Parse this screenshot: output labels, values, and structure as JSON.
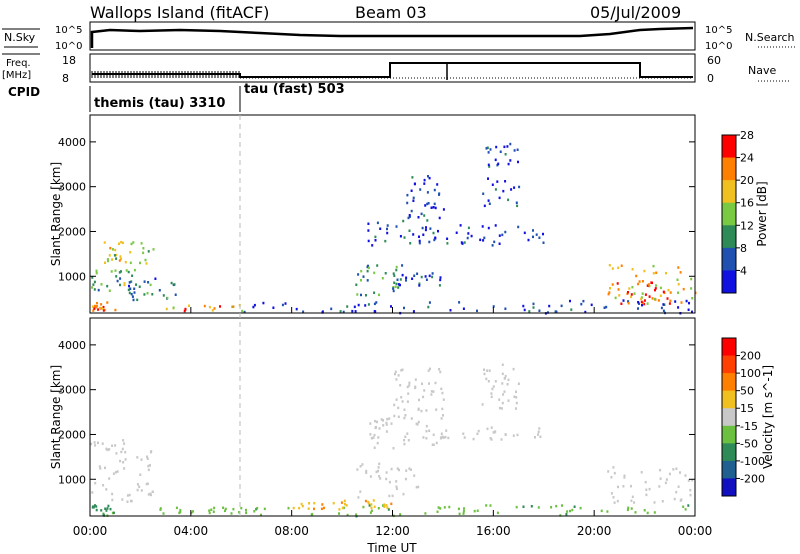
{
  "header": {
    "title": "Wallops Island (fitACF)",
    "beam": "Beam 03",
    "date": "05/Jul/2009"
  },
  "top_panels": {
    "nsky_label": "N.Sky",
    "nsky_ticks": [
      "10^5",
      "10^0"
    ],
    "nsearch_label": "N.Search",
    "nsearch_ticks": [
      "10^5",
      "10^0"
    ],
    "freq_label": "Freq.",
    "freq_unit": "[MHz]",
    "freq_ticks": [
      "18",
      "8"
    ],
    "nave_label": "Nave",
    "nave_ticks": [
      "60",
      "0"
    ],
    "cpid_label": "CPID",
    "cpid_segments": [
      {
        "label": "themis (tau) 3310",
        "start_hour": 0,
        "end_hour": 6
      },
      {
        "label": "tau (fast) 503",
        "start_hour": 6,
        "end_hour": 24
      }
    ]
  },
  "chart_data": [
    {
      "type": "heatmap",
      "name": "power-panel",
      "xlabel": "",
      "ylabel": "Slant Range [km]",
      "xlim": [
        0,
        24
      ],
      "ylim": [
        180,
        4600
      ],
      "yticks": [
        "1000",
        "2000",
        "3000",
        "4000"
      ],
      "xticks": [
        "00:00",
        "04:00",
        "08:00",
        "12:00",
        "16:00",
        "20:00",
        "00:00"
      ],
      "colorbar": {
        "label": "Power [dB]",
        "ticks": [
          "4",
          "8",
          "12",
          "16",
          "20",
          "24",
          "28"
        ],
        "colors": [
          "#1010e0",
          "#2050b0",
          "#2e8b57",
          "#7ac943",
          "#f0c020",
          "#ff8000",
          "#ff0000"
        ]
      },
      "regions": [
        {
          "t": [
            0.0,
            1.0
          ],
          "r": [
            250,
            450
          ],
          "level": 24
        },
        {
          "t": [
            0.0,
            1.8
          ],
          "r": [
            700,
            1200
          ],
          "level": 14
        },
        {
          "t": [
            0.5,
            2.5
          ],
          "r": [
            1300,
            1800
          ],
          "level": 18
        },
        {
          "t": [
            1.5,
            3.5
          ],
          "r": [
            500,
            1000
          ],
          "level": 10
        },
        {
          "t": [
            3.0,
            6.0
          ],
          "r": [
            250,
            400
          ],
          "level": 22
        },
        {
          "t": [
            6.0,
            24.0
          ],
          "r": [
            200,
            500
          ],
          "level": 6
        },
        {
          "t": [
            10.5,
            12.5
          ],
          "r": [
            600,
            1300
          ],
          "level": 12
        },
        {
          "t": [
            12.0,
            14.0
          ],
          "r": [
            800,
            1100
          ],
          "level": 8
        },
        {
          "t": [
            11.0,
            13.5
          ],
          "r": [
            1700,
            2300
          ],
          "level": 8
        },
        {
          "t": [
            13.0,
            18.0
          ],
          "r": [
            1700,
            2200
          ],
          "level": 6
        },
        {
          "t": [
            12.5,
            14.0
          ],
          "r": [
            2300,
            3300
          ],
          "level": 6
        },
        {
          "t": [
            15.5,
            17.0
          ],
          "r": [
            2600,
            4000
          ],
          "level": 6
        },
        {
          "t": [
            20.5,
            24.0
          ],
          "r": [
            400,
            1300
          ],
          "level": 20
        },
        {
          "t": [
            20.8,
            23.0
          ],
          "r": [
            400,
            900
          ],
          "level": 28
        }
      ]
    },
    {
      "type": "heatmap",
      "name": "velocity-panel",
      "xlabel": "Time UT",
      "ylabel": "Slant Range [km]",
      "xlim": [
        0,
        24
      ],
      "ylim": [
        180,
        4600
      ],
      "yticks": [
        "1000",
        "2000",
        "3000",
        "4000"
      ],
      "xticks": [
        "00:00",
        "04:00",
        "08:00",
        "12:00",
        "16:00",
        "20:00",
        "00:00"
      ],
      "colorbar": {
        "label": "Velocity [m s^-1]",
        "ticks": [
          "200",
          "100",
          "50",
          "15",
          "-15",
          "-50",
          "-100",
          "-200"
        ],
        "colors": [
          "#1010c0",
          "#206090",
          "#2e8b57",
          "#6cc040",
          "#c8c8c8",
          "#f0c020",
          "#ff8000",
          "#ff4000",
          "#ff0000"
        ]
      },
      "regions": [
        {
          "t": [
            0.0,
            2.5
          ],
          "r": [
            500,
            1900
          ],
          "level": 0
        },
        {
          "t": [
            0.0,
            1.0
          ],
          "r": [
            200,
            450
          ],
          "level": 60
        },
        {
          "t": [
            2.5,
            6.0
          ],
          "r": [
            250,
            420
          ],
          "level": 30
        },
        {
          "t": [
            6.0,
            24.0
          ],
          "r": [
            200,
            450
          ],
          "level": 40
        },
        {
          "t": [
            8.0,
            12.0
          ],
          "r": [
            350,
            600
          ],
          "level": -40
        },
        {
          "t": [
            10.5,
            13.0
          ],
          "r": [
            600,
            1400
          ],
          "level": 0
        },
        {
          "t": [
            11.0,
            14.0
          ],
          "r": [
            1700,
            2500
          ],
          "level": 0
        },
        {
          "t": [
            13.0,
            18.0
          ],
          "r": [
            1900,
            2200
          ],
          "level": 0
        },
        {
          "t": [
            12.0,
            14.0
          ],
          "r": [
            2400,
            3500
          ],
          "level": 0
        },
        {
          "t": [
            15.5,
            17.0
          ],
          "r": [
            2600,
            3600
          ],
          "level": 0
        },
        {
          "t": [
            20.5,
            24.0
          ],
          "r": [
            500,
            1300
          ],
          "level": 0
        }
      ]
    }
  ]
}
